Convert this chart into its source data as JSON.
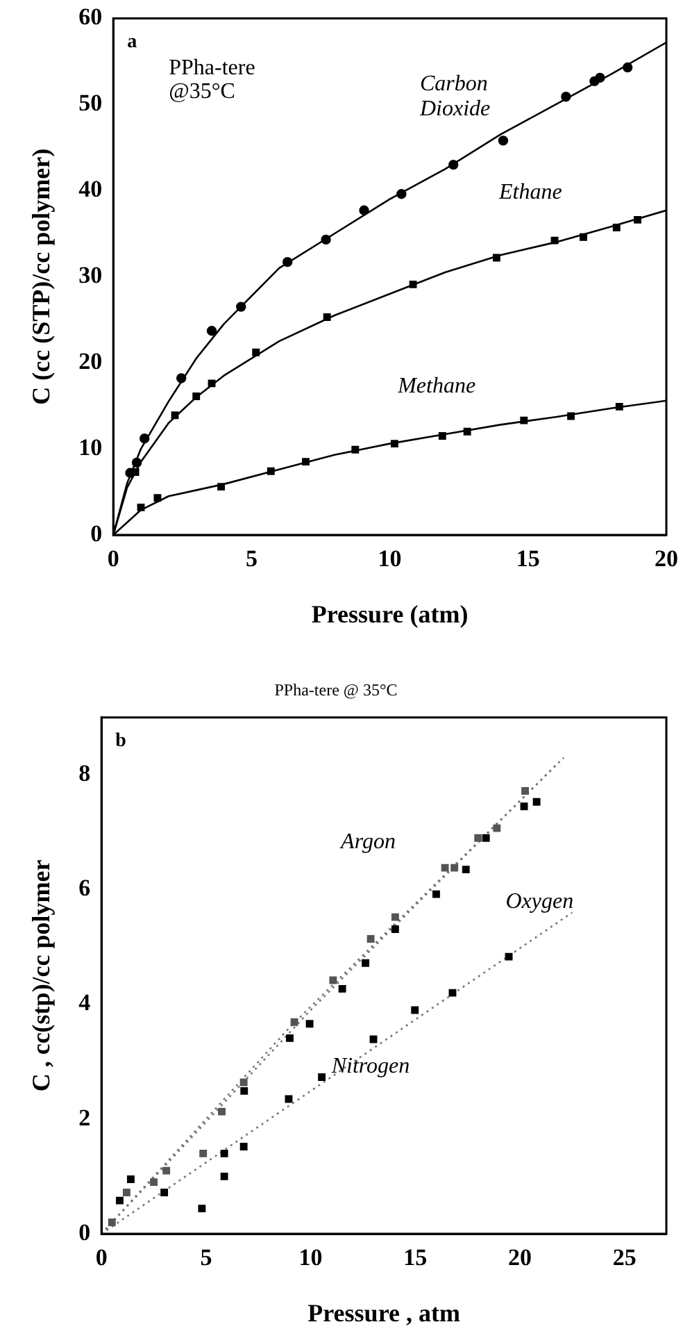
{
  "chart_data": [
    {
      "type": "scatter",
      "xlabel": "Pressure (atm)",
      "ylabel": "C (cc (STP)/cc polymer)",
      "xlim": [
        0,
        20
      ],
      "ylim": [
        0,
        60
      ],
      "xticks": [
        0,
        5,
        10,
        15,
        20
      ],
      "yticks": [
        0,
        10,
        20,
        30,
        40,
        50,
        60
      ],
      "grid": false,
      "legend": false,
      "annotations": [
        "a",
        "PPha-tere @35°C"
      ],
      "series": [
        {
          "name": "Carbon Dioxide",
          "color": "#000000",
          "marker": "circle",
          "x": [
            0.61,
            0.85,
            1.13,
            2.46,
            3.56,
            4.62,
            6.3,
            7.69,
            9.07,
            10.42,
            12.3,
            14.1,
            16.37,
            17.4,
            17.6,
            18.6
          ],
          "values": [
            7.2,
            8.4,
            11.2,
            18.2,
            23.7,
            26.5,
            31.7,
            34.3,
            37.7,
            39.6,
            43,
            45.8,
            50.9,
            52.7,
            53.1,
            54.3
          ]
        },
        {
          "name": "Ethane",
          "color": "#000000",
          "marker": "square",
          "x": [
            0.8,
            2.23,
            3.0,
            3.56,
            5.16,
            7.73,
            10.84,
            13.86,
            15.96,
            17.0,
            18.2,
            18.96
          ],
          "values": [
            7.3,
            13.9,
            16.1,
            17.6,
            21.2,
            25.3,
            29.1,
            32.2,
            34.2,
            34.6,
            35.7,
            36.6
          ]
        },
        {
          "name": "Methane",
          "color": "#000000",
          "marker": "square",
          "x": [
            1.0,
            1.6,
            3.9,
            5.7,
            6.96,
            8.75,
            10.17,
            11.9,
            12.8,
            14.85,
            16.55,
            18.3
          ],
          "values": [
            3.2,
            4.3,
            5.6,
            7.4,
            8.5,
            9.9,
            10.6,
            11.5,
            12.0,
            13.3,
            13.8,
            14.9
          ]
        },
        {
          "type": "line",
          "color": "#000000",
          "marker": "none",
          "line_style": "solid",
          "x": [
            0,
            0.5,
            1,
            2,
            3,
            4,
            6,
            8,
            10,
            12,
            14,
            16,
            18,
            20
          ],
          "values": [
            0,
            6,
            10,
            15.5,
            20.5,
            24.5,
            31,
            35,
            39,
            42.5,
            46.5,
            50,
            53.5,
            57.2
          ]
        },
        {
          "type": "line",
          "color": "#000000",
          "marker": "none",
          "line_style": "solid",
          "x": [
            0,
            0.5,
            1,
            2,
            3,
            4,
            6,
            8,
            10,
            12,
            14,
            16,
            18,
            20
          ],
          "values": [
            0,
            5.5,
            8.5,
            13,
            16,
            18.5,
            22.5,
            25.5,
            28,
            30.5,
            32.5,
            34,
            35.8,
            37.7
          ]
        },
        {
          "type": "line",
          "color": "#000000",
          "marker": "none",
          "line_style": "solid",
          "x": [
            0,
            1,
            2,
            4,
            6,
            8,
            10,
            12,
            14,
            16,
            18,
            20
          ],
          "values": [
            0,
            2.9,
            4.5,
            5.9,
            7.6,
            9.3,
            10.6,
            11.7,
            12.8,
            13.7,
            14.7,
            15.6
          ]
        }
      ]
    },
    {
      "type": "scatter",
      "title": "PPha-tere @ 35°C",
      "xlabel": "Pressure , atm",
      "ylabel": "C , cc(stp)/cc polymer",
      "xlim": [
        0,
        27
      ],
      "ylim": [
        0,
        9
      ],
      "xticks": [
        0,
        5,
        10,
        15,
        20,
        25
      ],
      "yticks": [
        0,
        2,
        4,
        6,
        8
      ],
      "grid": false,
      "legend": false,
      "annotations": [
        "b"
      ],
      "series": [
        {
          "name": "Argon",
          "color": "#555555",
          "marker": "square",
          "x": [
            0.5,
            1.2,
            2.5,
            3.1,
            4.86,
            5.75,
            6.8,
            9.22,
            11.07,
            12.87,
            14.04,
            16.42,
            16.87,
            18.0,
            18.9,
            20.25
          ],
          "values": [
            0.2,
            0.72,
            0.9,
            1.1,
            1.4,
            2.13,
            2.64,
            3.69,
            4.42,
            5.14,
            5.52,
            6.38,
            6.38,
            6.9,
            7.07,
            7.72
          ]
        },
        {
          "name": "Oxygen",
          "color": "#000000",
          "marker": "square",
          "x": [
            0.87,
            1.4,
            3.0,
            5.87,
            6.82,
            9.0,
            9.95,
            11.51,
            12.62,
            14.04,
            16.0,
            17.42,
            18.38,
            20.2,
            20.8
          ],
          "values": [
            0.58,
            0.95,
            0.72,
            1.4,
            2.49,
            3.41,
            3.66,
            4.27,
            4.72,
            5.31,
            5.92,
            6.35,
            6.9,
            7.45,
            7.53
          ]
        },
        {
          "name": "Nitrogen",
          "color": "#000000",
          "marker": "square",
          "x": [
            4.8,
            5.87,
            6.8,
            8.95,
            10.53,
            13.0,
            14.98,
            16.78,
            19.47
          ],
          "values": [
            0.44,
            1.0,
            1.52,
            2.35,
            2.73,
            3.39,
            3.9,
            4.2,
            4.83
          ]
        },
        {
          "type": "line",
          "color": "#777777",
          "marker": "none",
          "line_style": "dotted",
          "x": [
            0,
            9,
            22.1
          ],
          "values": [
            0,
            3.6,
            8.3
          ]
        },
        {
          "type": "line",
          "color": "#777777",
          "marker": "none",
          "line_style": "dotted",
          "x": [
            0,
            10,
            21.8
          ],
          "values": [
            0,
            3.9,
            8.2
          ]
        },
        {
          "type": "line",
          "color": "#777777",
          "marker": "none",
          "line_style": "dotted",
          "x": [
            0,
            22.5
          ],
          "values": [
            0,
            5.6
          ]
        }
      ]
    }
  ]
}
